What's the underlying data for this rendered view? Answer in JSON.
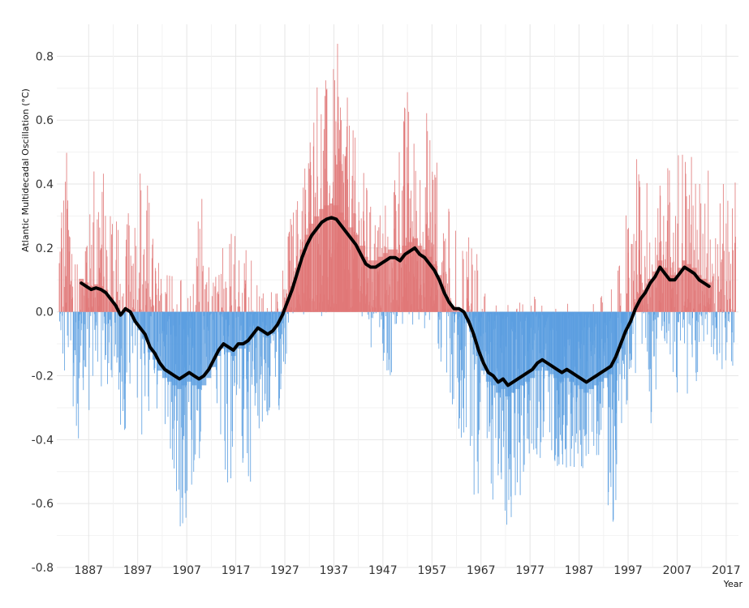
{
  "chart_data": {
    "type": "bar",
    "title": "",
    "xlabel": "Year",
    "ylabel": "Atlantic Multidecadal Oscillation (°C)",
    "xlim": [
      1880.5,
      2019.5
    ],
    "ylim": [
      -0.8,
      0.9
    ],
    "x_ticks": [
      1887,
      1897,
      1907,
      1917,
      1927,
      1937,
      1947,
      1957,
      1967,
      1977,
      1987,
      1997,
      2007,
      2017
    ],
    "x_tick_labels": [
      "1887",
      "1897",
      "1907",
      "1917",
      "1927",
      "1937",
      "1947",
      "1957",
      "1967",
      "1977",
      "1987",
      "1997",
      "2007",
      "2017"
    ],
    "y_ticks": [
      -0.8,
      -0.6,
      -0.4,
      -0.2,
      0.0,
      0.2,
      0.4,
      0.6,
      0.8
    ],
    "y_tick_labels": [
      "-0.8",
      "-0.6",
      "-0.4",
      "-0.2",
      "0.0",
      "0.2",
      "0.4",
      "0.6",
      "0.8"
    ],
    "grid": true,
    "colors": {
      "positive": "#e07777",
      "negative": "#5b9ee0",
      "smoothed": "#000000"
    },
    "monthly_range": [
      1881,
      2018
    ],
    "monthly_anomaly_envelope": {
      "year": [
        1881,
        1882,
        1884,
        1886,
        1888,
        1890,
        1892,
        1894,
        1896,
        1898,
        1900,
        1902,
        1904,
        1906,
        1908,
        1910,
        1912,
        1914,
        1916,
        1918,
        1920,
        1922,
        1924,
        1926,
        1928,
        1930,
        1932,
        1934,
        1936,
        1938,
        1940,
        1942,
        1944,
        1946,
        1948,
        1950,
        1952,
        1954,
        1956,
        1958,
        1960,
        1962,
        1964,
        1966,
        1968,
        1970,
        1972,
        1974,
        1976,
        1978,
        1980,
        1982,
        1984,
        1986,
        1988,
        1990,
        1992,
        1994,
        1996,
        1998,
        2000,
        2002,
        2004,
        2006,
        2008,
        2010,
        2012,
        2014,
        2016,
        2018
      ],
      "max": [
        0.3,
        0.6,
        0.28,
        0.33,
        0.5,
        0.45,
        0.42,
        0.35,
        0.28,
        0.59,
        0.25,
        0.12,
        0.18,
        0.1,
        0.05,
        0.44,
        0.08,
        0.22,
        0.28,
        0.25,
        0.18,
        0.15,
        0.12,
        0.1,
        0.3,
        0.4,
        0.6,
        0.83,
        0.7,
        0.86,
        0.65,
        0.5,
        0.4,
        0.3,
        0.45,
        0.55,
        0.72,
        0.5,
        0.65,
        0.55,
        0.35,
        0.25,
        0.3,
        0.2,
        0.12,
        0.05,
        0.04,
        0.05,
        0.03,
        0.05,
        0.05,
        0.02,
        0.03,
        0.04,
        0.05,
        0.05,
        0.05,
        0.08,
        0.2,
        0.55,
        0.4,
        0.45,
        0.4,
        0.52,
        0.58,
        0.5,
        0.4,
        0.52,
        0.35,
        0.6
      ],
      "min": [
        -0.05,
        -0.2,
        -0.44,
        -0.35,
        -0.3,
        -0.25,
        -0.28,
        -0.4,
        -0.3,
        -0.45,
        -0.3,
        -0.35,
        -0.55,
        -0.71,
        -0.6,
        -0.45,
        -0.4,
        -0.5,
        -0.58,
        -0.45,
        -0.57,
        -0.4,
        -0.35,
        -0.32,
        -0.05,
        -0.02,
        -0.01,
        -0.02,
        -0.01,
        -0.01,
        -0.02,
        -0.05,
        -0.1,
        -0.15,
        -0.26,
        -0.1,
        -0.05,
        -0.08,
        -0.05,
        -0.1,
        -0.25,
        -0.4,
        -0.55,
        -0.6,
        -0.56,
        -0.62,
        -0.73,
        -0.67,
        -0.5,
        -0.45,
        -0.55,
        -0.48,
        -0.5,
        -0.55,
        -0.5,
        -0.45,
        -0.58,
        -0.71,
        -0.4,
        -0.3,
        -0.2,
        -0.42,
        -0.25,
        -0.2,
        -0.35,
        -0.3,
        -0.2,
        -0.25,
        -0.2,
        -0.18
      ]
    },
    "smoothed_series": {
      "x": [
        1885.5,
        1886.5,
        1887.5,
        1888.5,
        1889.5,
        1890.5,
        1891.5,
        1892.5,
        1893.5,
        1894.5,
        1895.5,
        1896.5,
        1897.5,
        1898.5,
        1899.5,
        1900.5,
        1901.5,
        1902.5,
        1903.5,
        1904.5,
        1905.5,
        1906.5,
        1907.5,
        1908.5,
        1909.5,
        1910.5,
        1911.5,
        1912.5,
        1913.5,
        1914.5,
        1915.5,
        1916.5,
        1917.5,
        1918.5,
        1919.5,
        1920.5,
        1921.5,
        1922.5,
        1923.5,
        1924.5,
        1925.5,
        1926.5,
        1927.5,
        1928.5,
        1929.5,
        1930.5,
        1931.5,
        1932.5,
        1933.5,
        1934.5,
        1935.5,
        1936.5,
        1937.5,
        1938.5,
        1939.5,
        1940.5,
        1941.5,
        1942.5,
        1943.5,
        1944.5,
        1945.5,
        1946.5,
        1947.5,
        1948.5,
        1949.5,
        1950.5,
        1951.5,
        1952.5,
        1953.5,
        1954.5,
        1955.5,
        1956.5,
        1957.5,
        1958.5,
        1959.5,
        1960.5,
        1961.5,
        1962.5,
        1963.5,
        1964.5,
        1965.5,
        1966.5,
        1967.5,
        1968.5,
        1969.5,
        1970.5,
        1971.5,
        1972.5,
        1973.5,
        1974.5,
        1975.5,
        1976.5,
        1977.5,
        1978.5,
        1979.5,
        1980.5,
        1981.5,
        1982.5,
        1983.5,
        1984.5,
        1985.5,
        1986.5,
        1987.5,
        1988.5,
        1989.5,
        1990.5,
        1991.5,
        1992.5,
        1993.5,
        1994.5,
        1995.5,
        1996.5,
        1997.5,
        1998.5,
        1999.5,
        2000.5,
        2001.5,
        2002.5,
        2003.5,
        2004.5,
        2005.5,
        2006.5,
        2007.5,
        2008.5,
        2009.5,
        2010.5,
        2011.5,
        2012.5,
        2013.5
      ],
      "y": [
        0.09,
        0.08,
        0.07,
        0.075,
        0.07,
        0.06,
        0.04,
        0.02,
        -0.01,
        0.01,
        0.0,
        -0.03,
        -0.05,
        -0.07,
        -0.11,
        -0.13,
        -0.16,
        -0.18,
        -0.19,
        -0.2,
        -0.21,
        -0.2,
        -0.19,
        -0.2,
        -0.21,
        -0.2,
        -0.18,
        -0.15,
        -0.12,
        -0.1,
        -0.11,
        -0.12,
        -0.1,
        -0.1,
        -0.09,
        -0.07,
        -0.05,
        -0.06,
        -0.07,
        -0.06,
        -0.04,
        -0.01,
        0.03,
        0.07,
        0.12,
        0.17,
        0.21,
        0.24,
        0.26,
        0.28,
        0.29,
        0.295,
        0.29,
        0.27,
        0.25,
        0.23,
        0.21,
        0.18,
        0.15,
        0.14,
        0.14,
        0.15,
        0.16,
        0.17,
        0.17,
        0.16,
        0.18,
        0.19,
        0.2,
        0.18,
        0.17,
        0.15,
        0.13,
        0.1,
        0.06,
        0.03,
        0.01,
        0.01,
        0.0,
        -0.03,
        -0.07,
        -0.12,
        -0.16,
        -0.19,
        -0.2,
        -0.22,
        -0.21,
        -0.23,
        -0.22,
        -0.21,
        -0.2,
        -0.19,
        -0.18,
        -0.16,
        -0.15,
        -0.16,
        -0.17,
        -0.18,
        -0.19,
        -0.18,
        -0.19,
        -0.2,
        -0.21,
        -0.22,
        -0.21,
        -0.2,
        -0.19,
        -0.18,
        -0.17,
        -0.14,
        -0.1,
        -0.06,
        -0.03,
        0.01,
        0.04,
        0.06,
        0.09,
        0.11,
        0.14,
        0.12,
        0.1,
        0.1,
        0.12,
        0.14,
        0.13,
        0.12,
        0.1,
        0.09,
        0.08
      ]
    }
  }
}
